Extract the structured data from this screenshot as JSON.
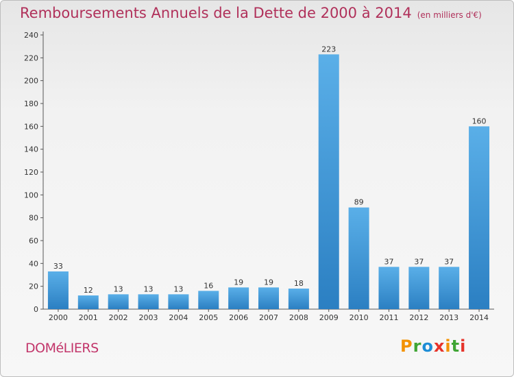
{
  "title": "Remboursements Annuels de la Dette de 2000 à 2014",
  "subtitle": "(en milliers d'€)",
  "town": "DOMéLIERS",
  "logo": {
    "text": "Proxiti",
    "colors": [
      "#f39200",
      "#3fa535",
      "#1d8dd6",
      "#e6332a",
      "#f39200",
      "#3fa535",
      "#e6332a"
    ]
  },
  "colors": {
    "title": "#b0305a",
    "bar_light": "#5aafe8",
    "bar_dark": "#2b7fc2"
  },
  "chart_data": {
    "type": "bar",
    "categories": [
      "2000",
      "2001",
      "2002",
      "2003",
      "2004",
      "2005",
      "2006",
      "2007",
      "2008",
      "2009",
      "2010",
      "2011",
      "2012",
      "2013",
      "2014"
    ],
    "values": [
      33,
      12,
      13,
      13,
      13,
      16,
      19,
      19,
      18,
      223,
      89,
      37,
      37,
      37,
      160
    ],
    "ylim": [
      0,
      240
    ],
    "yticks": [
      0,
      20,
      40,
      60,
      80,
      100,
      120,
      140,
      160,
      180,
      200,
      220,
      240
    ],
    "grid": false,
    "data_labels": true
  }
}
